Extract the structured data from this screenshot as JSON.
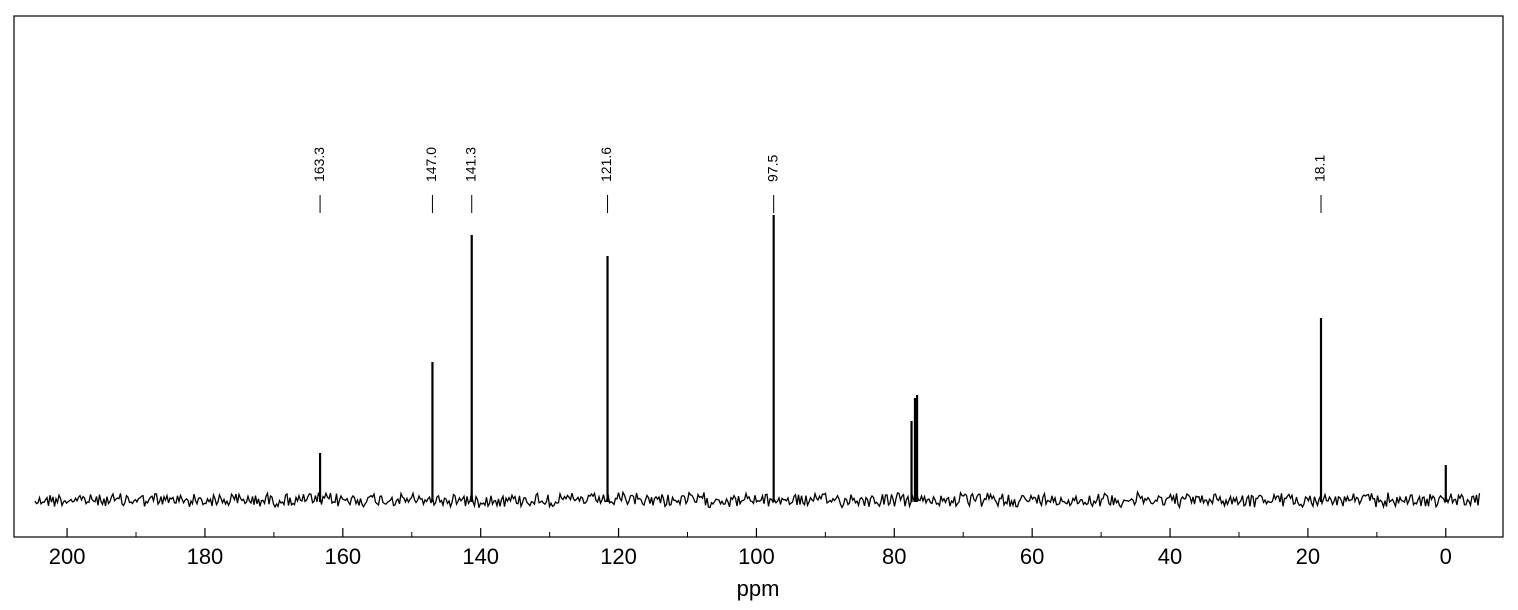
{
  "chart_data": {
    "type": "spectrum",
    "x_axis_label": "ppm",
    "x": [
      163.3,
      147.0,
      141.3,
      121.6,
      97.5,
      77.5,
      77.0,
      76.7,
      18.1,
      0
    ],
    "x_labels": [
      "163.3",
      "147.0",
      "141.3",
      "121.6",
      "97.5",
      null,
      null,
      null,
      "18.1",
      null
    ],
    "values": [
      47,
      138,
      265,
      244,
      285,
      79,
      102,
      105,
      182,
      35
    ],
    "color": "#000000",
    "xlim": [
      207.7,
      -8.3
    ],
    "xticks": [
      200,
      180,
      160,
      140,
      120,
      100,
      80,
      60,
      40,
      20,
      0
    ],
    "xticks_minor": [
      190,
      170,
      150,
      130,
      110,
      90,
      70,
      50,
      30,
      10
    ],
    "ylim": [
      0,
      300
    ]
  }
}
